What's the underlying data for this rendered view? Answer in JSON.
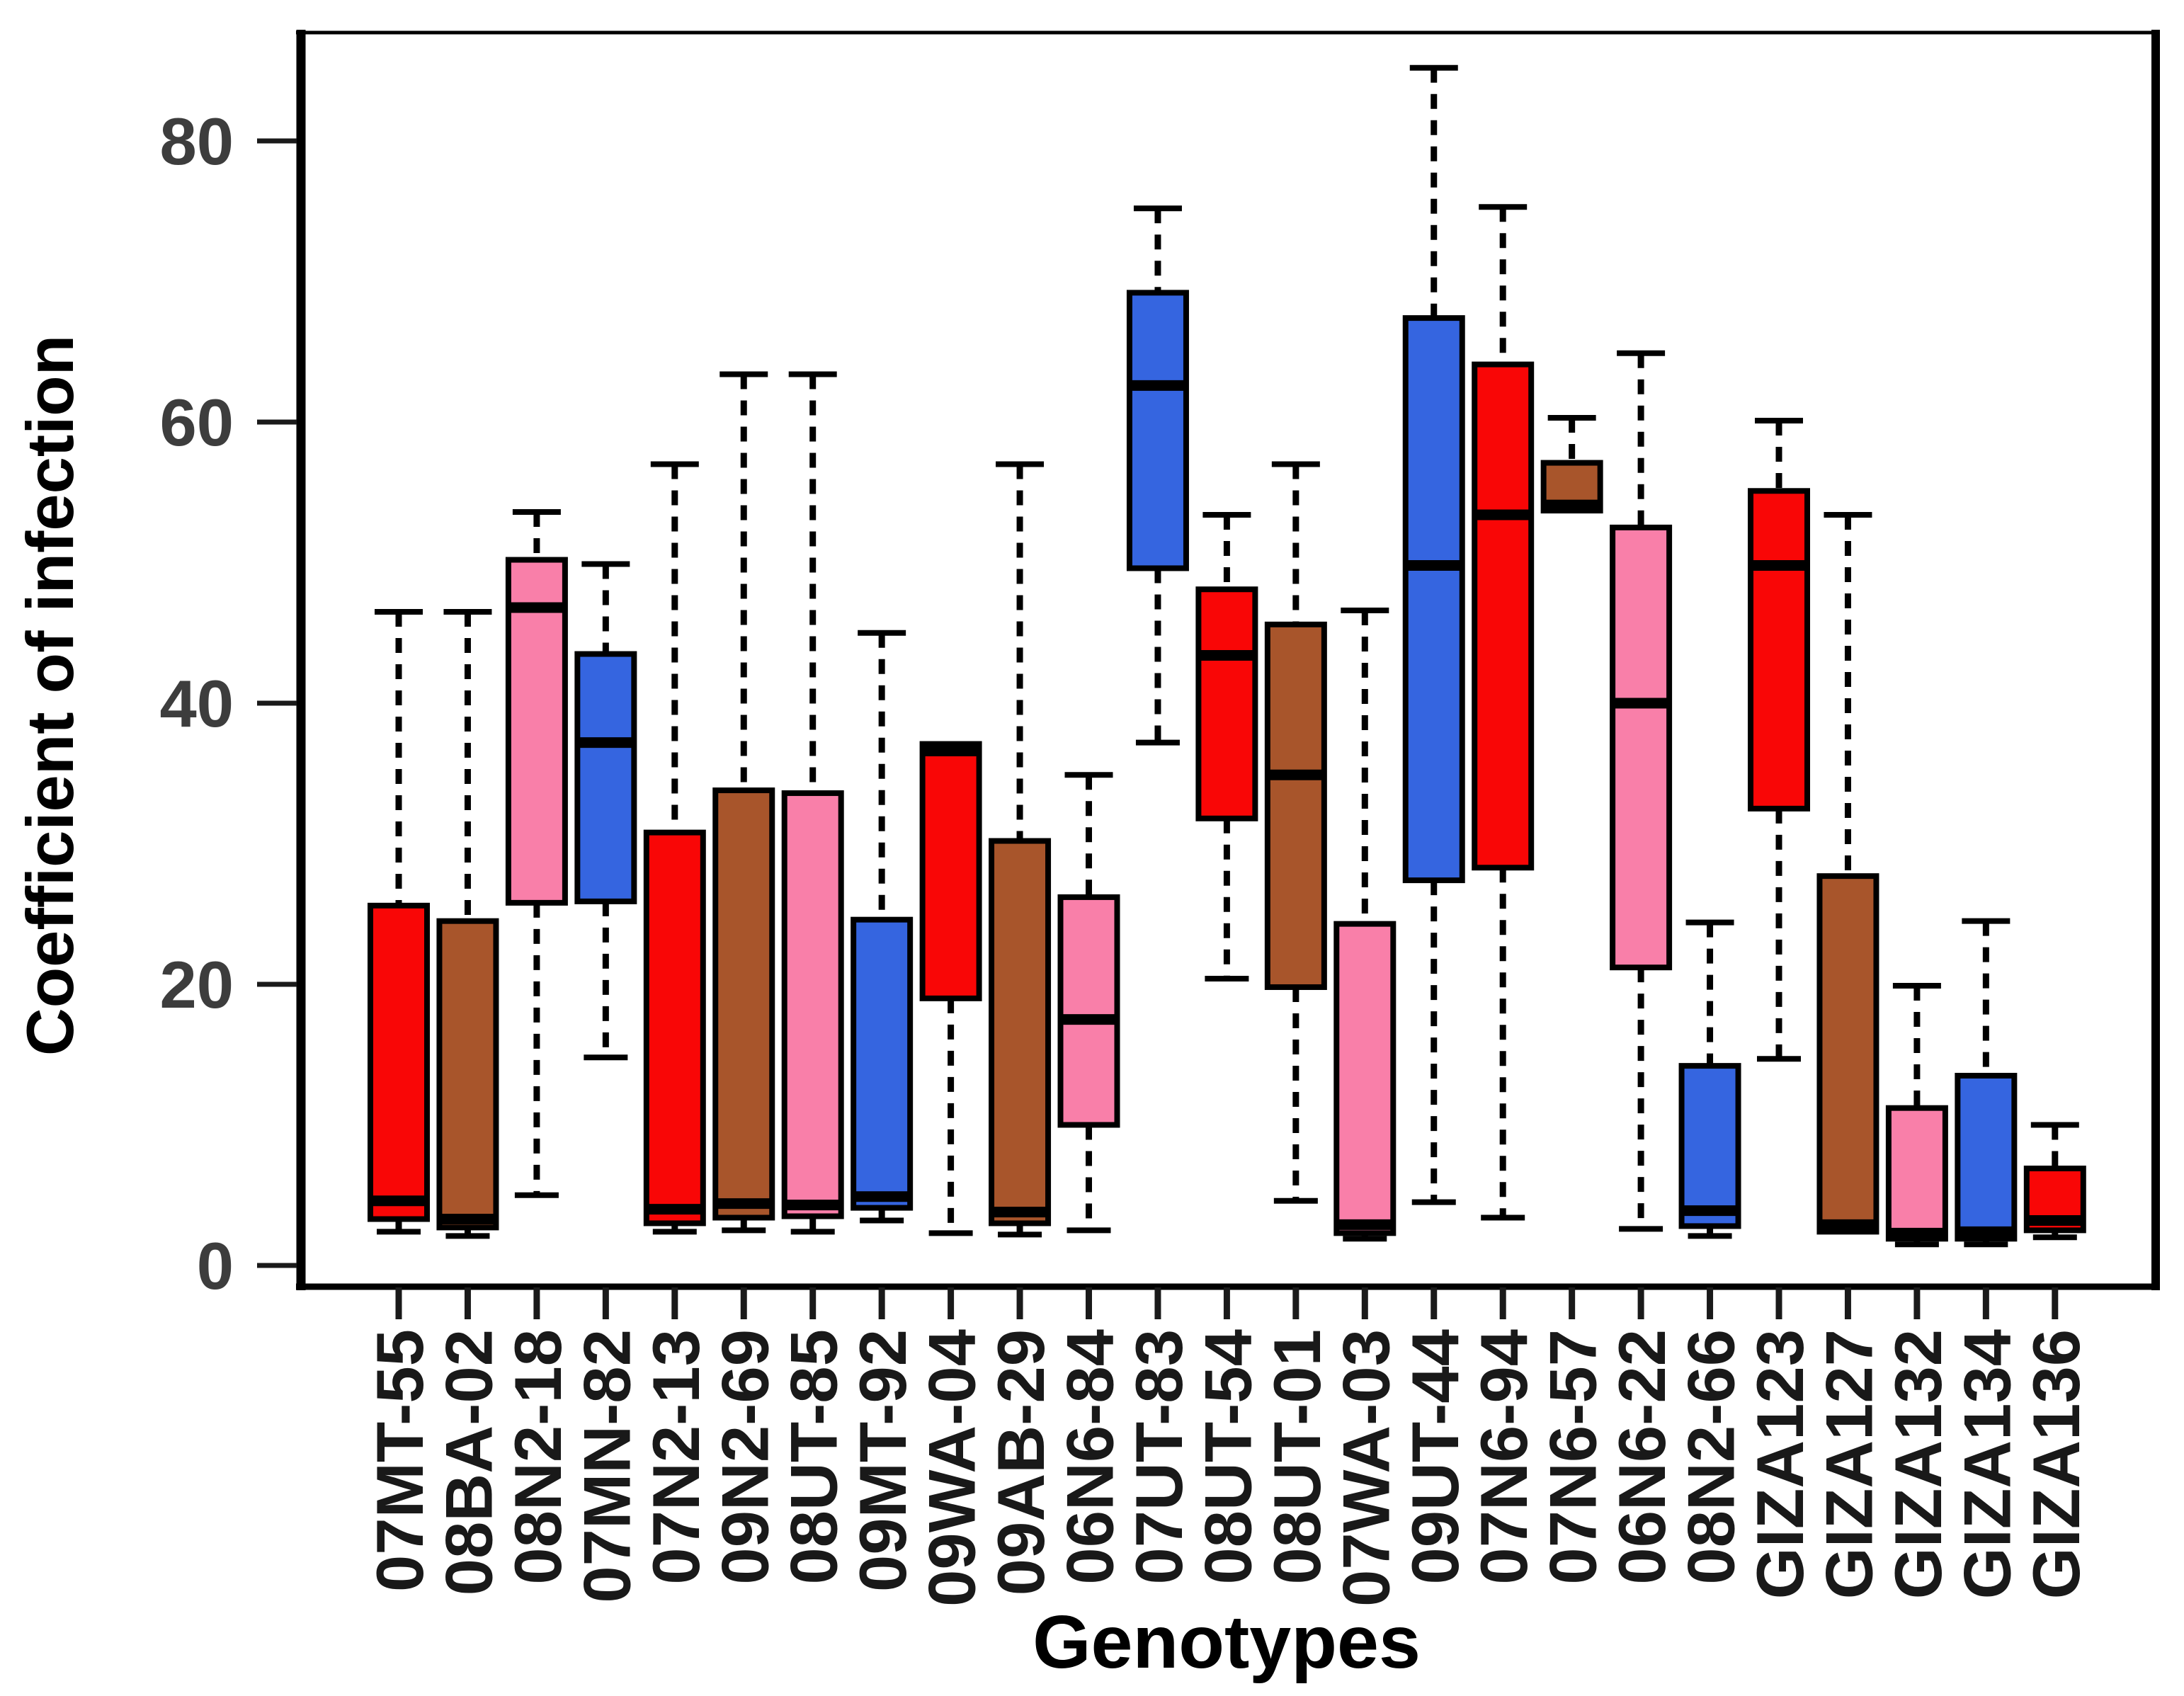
{
  "page": {
    "background": "#ffffff"
  },
  "chart_data": {
    "type": "boxplot",
    "title": "",
    "xlabel": "Genotypes",
    "ylabel": "Coefficient of infection",
    "ylim": [
      0,
      88
    ],
    "yticks": [
      0,
      20,
      40,
      60,
      80
    ],
    "grid": false,
    "legend": "none",
    "palette": {
      "red": "#F90606",
      "brown": "#A8552B",
      "pink": "#F97FA9",
      "blue": "#3565E0"
    },
    "box_outline_color": "#000000",
    "median_color": "#000000",
    "whisker_style": "dashed",
    "categories": [
      "07MT-55",
      "08BA-02",
      "08N2-18",
      "07MN-82",
      "07N2-13",
      "09N2-69",
      "08UT-85",
      "09MT-92",
      "09WA-04",
      "09AB-29",
      "06N6-84",
      "07UT-83",
      "08UT-54",
      "08UT-01",
      "07WA-03",
      "09UT-44",
      "07N6-94",
      "07N6-57",
      "06N6-22",
      "08N2-66",
      "GIZA123",
      "GIZA127",
      "GIZA132",
      "GIZA134",
      "GIZA136"
    ],
    "boxes": [
      {
        "label": "07MT-55",
        "color": "red",
        "low": 2.4,
        "q1": 3.3,
        "median": 4.6,
        "q3": 25.6,
        "high": 46.5
      },
      {
        "label": "08BA-02",
        "color": "brown",
        "low": 2.1,
        "q1": 2.7,
        "median": 3.3,
        "q3": 24.5,
        "high": 46.5
      },
      {
        "label": "08N2-18",
        "color": "pink",
        "low": 5.0,
        "q1": 25.8,
        "median": 46.8,
        "q3": 50.2,
        "high": 53.6
      },
      {
        "label": "07MN-82",
        "color": "blue",
        "low": 14.8,
        "q1": 25.9,
        "median": 37.2,
        "q3": 43.5,
        "high": 49.9
      },
      {
        "label": "07N2-13",
        "color": "red",
        "low": 2.4,
        "q1": 3.0,
        "median": 4.0,
        "q3": 30.8,
        "high": 57.0
      },
      {
        "label": "09N2-69",
        "color": "brown",
        "low": 2.5,
        "q1": 3.4,
        "median": 4.4,
        "q3": 33.8,
        "high": 63.4
      },
      {
        "label": "08UT-85",
        "color": "pink",
        "low": 2.4,
        "q1": 3.5,
        "median": 4.3,
        "q3": 33.6,
        "high": 63.4
      },
      {
        "label": "09MT-92",
        "color": "blue",
        "low": 3.2,
        "q1": 4.1,
        "median": 4.9,
        "q3": 24.6,
        "high": 45.0
      },
      {
        "label": "09WA-04",
        "color": "red",
        "low": 2.3,
        "q1": 19.0,
        "median": 36.6,
        "q3": 37.1,
        "high": 37.1
      },
      {
        "label": "09AB-29",
        "color": "brown",
        "low": 2.2,
        "q1": 3.0,
        "median": 3.8,
        "q3": 30.2,
        "high": 57.0
      },
      {
        "label": "06N6-84",
        "color": "pink",
        "low": 2.5,
        "q1": 10.0,
        "median": 17.5,
        "q3": 26.2,
        "high": 34.9
      },
      {
        "label": "07UT-83",
        "color": "blue",
        "low": 37.2,
        "q1": 49.6,
        "median": 62.6,
        "q3": 69.2,
        "high": 75.2
      },
      {
        "label": "08UT-54",
        "color": "red",
        "low": 20.4,
        "q1": 31.8,
        "median": 43.4,
        "q3": 48.1,
        "high": 53.4
      },
      {
        "label": "08UT-01",
        "color": "brown",
        "low": 4.6,
        "q1": 19.8,
        "median": 34.9,
        "q3": 45.6,
        "high": 57.0
      },
      {
        "label": "07WA-03",
        "color": "pink",
        "low": 1.9,
        "q1": 2.3,
        "median": 2.9,
        "q3": 24.3,
        "high": 46.6
      },
      {
        "label": "09UT-44",
        "color": "blue",
        "low": 4.5,
        "q1": 27.4,
        "median": 49.8,
        "q3": 67.4,
        "high": 85.2
      },
      {
        "label": "07N6-94",
        "color": "red",
        "low": 3.4,
        "q1": 28.3,
        "median": 53.4,
        "q3": 64.1,
        "high": 75.3
      },
      {
        "label": "07N6-57",
        "color": "brown",
        "low": 53.6,
        "q1": 53.7,
        "median": 54.1,
        "q3": 57.1,
        "high": 60.3
      },
      {
        "label": "06N6-22",
        "color": "pink",
        "low": 2.6,
        "q1": 21.2,
        "median": 40.0,
        "q3": 52.5,
        "high": 64.9
      },
      {
        "label": "08N2-66",
        "color": "blue",
        "low": 2.1,
        "q1": 2.8,
        "median": 3.9,
        "q3": 14.2,
        "high": 24.4
      },
      {
        "label": "GIZA123",
        "color": "red",
        "low": 14.7,
        "q1": 32.5,
        "median": 49.8,
        "q3": 55.1,
        "high": 60.1
      },
      {
        "label": "GIZA127",
        "color": "brown",
        "low": 2.1,
        "q1": 2.4,
        "median": 2.9,
        "q3": 27.7,
        "high": 53.4
      },
      {
        "label": "GIZA132",
        "color": "pink",
        "low": 1.5,
        "q1": 1.9,
        "median": 2.3,
        "q3": 11.2,
        "high": 19.9
      },
      {
        "label": "GIZA134",
        "color": "blue",
        "low": 1.5,
        "q1": 1.9,
        "median": 2.4,
        "q3": 13.5,
        "high": 24.5
      },
      {
        "label": "GIZA136",
        "color": "red",
        "low": 2.0,
        "q1": 2.5,
        "median": 3.2,
        "q3": 6.9,
        "high": 10.0
      }
    ]
  }
}
